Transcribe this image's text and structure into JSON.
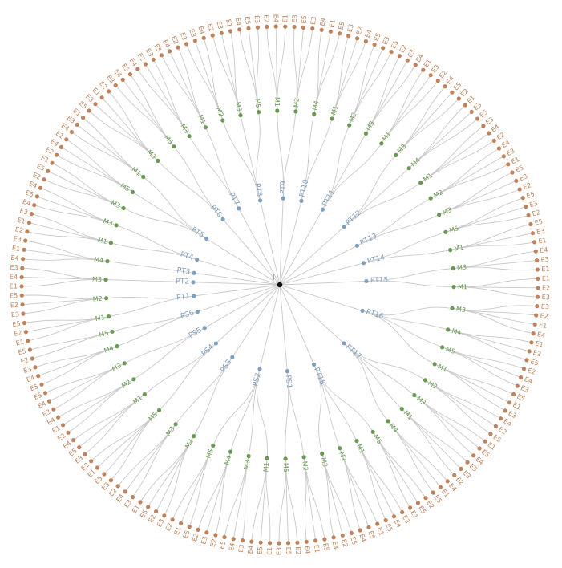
{
  "colors": {
    "root": "#111111",
    "level1": "#7f9fbf",
    "level2": "#6a9a52",
    "level3": "#c0825a",
    "link": "#c9c9c9"
  },
  "root": {
    "label": "l"
  },
  "tree": [
    {
      "label": "PS1",
      "children": [
        {
          "label": "M2",
          "leaves": [
            "E5",
            "E1",
            "E4"
          ]
        },
        {
          "label": "M5",
          "leaves": [
            "E2",
            "E5",
            "E3"
          ]
        }
      ]
    },
    {
      "label": "PS2",
      "children": [
        {
          "label": "M1",
          "leaves": [
            "E1",
            "E5",
            "E4"
          ]
        },
        {
          "label": "M3",
          "leaves": [
            "E3",
            "E4",
            "E5"
          ]
        },
        {
          "label": "M4",
          "leaves": [
            "E2",
            "E3",
            "E2"
          ]
        },
        {
          "label": "M5",
          "leaves": [
            "E5",
            "E1",
            "E2"
          ]
        }
      ]
    },
    {
      "label": "PS3",
      "children": [
        {
          "label": "M2",
          "leaves": [
            "E3",
            "E2",
            "E5",
            "E1"
          ]
        },
        {
          "label": "M3",
          "leaves": [
            "E3",
            "E4",
            "E2"
          ]
        }
      ]
    },
    {
      "label": "PS4",
      "children": [
        {
          "label": "M5",
          "leaves": [
            "E3",
            "E5",
            "E1",
            "E2"
          ]
        },
        {
          "label": "M1",
          "leaves": [
            "E3",
            "E5",
            "E4"
          ]
        }
      ]
    },
    {
      "label": "PS5",
      "children": [
        {
          "label": "M2",
          "leaves": [
            "E2",
            "E1",
            "E4"
          ]
        },
        {
          "label": "M3",
          "leaves": [
            "E3",
            "E4",
            "E5"
          ]
        }
      ]
    },
    {
      "label": "PS6",
      "children": [
        {
          "label": "M4",
          "leaves": [
            "E5",
            "E4",
            "E3"
          ]
        },
        {
          "label": "M5",
          "leaves": [
            "E2",
            "E5"
          ]
        }
      ]
    },
    {
      "label": "PT1",
      "children": [
        {
          "label": "M1",
          "leaves": [
            "E1",
            "E2",
            "E5"
          ]
        },
        {
          "label": "M2",
          "leaves": [
            "E3",
            "E2",
            "E5"
          ]
        }
      ]
    },
    {
      "label": "PT2",
      "children": [
        {
          "label": "M3",
          "leaves": [
            "E1",
            "E4",
            "E3"
          ]
        }
      ]
    },
    {
      "label": "PT3",
      "children": [
        {
          "label": "M4",
          "leaves": [
            "E4",
            "E1",
            "E3"
          ]
        }
      ]
    },
    {
      "label": "PT4",
      "children": [
        {
          "label": "M1",
          "leaves": [
            "E2",
            "E1",
            "E3"
          ]
        },
        {
          "label": "M3",
          "leaves": [
            "E4",
            "E5",
            "E4"
          ]
        }
      ]
    },
    {
      "label": "PT5",
      "children": [
        {
          "label": "M3",
          "leaves": [
            "E2",
            "E5",
            "E1"
          ]
        },
        {
          "label": "M5",
          "leaves": [
            "E2",
            "E4",
            "E1"
          ]
        },
        {
          "label": "M1",
          "leaves": [
            "E4",
            "E3",
            "E1"
          ]
        }
      ]
    },
    {
      "label": "PT6",
      "children": [
        {
          "label": "M3",
          "leaves": [
            "E5",
            "E3",
            "E1",
            "E2"
          ]
        },
        {
          "label": "M5",
          "leaves": [
            "E3",
            "E4",
            "E5"
          ]
        }
      ]
    },
    {
      "label": "PT7",
      "children": [
        {
          "label": "M3",
          "leaves": [
            "E4",
            "E2",
            "E3"
          ]
        },
        {
          "label": "M1",
          "leaves": [
            "E5",
            "E4",
            "E2"
          ]
        }
      ]
    },
    {
      "label": "PT8",
      "children": [
        {
          "label": "M2",
          "leaves": [
            "E1",
            "E3",
            "E4"
          ]
        },
        {
          "label": "M3",
          "leaves": [
            "E2",
            "E3",
            "E1"
          ]
        },
        {
          "label": "M5",
          "leaves": [
            "E4",
            "E5",
            "E3"
          ]
        }
      ]
    },
    {
      "label": "PT9",
      "children": [
        {
          "label": "M1",
          "leaves": [
            "E2",
            "E4",
            "E1"
          ]
        },
        {
          "label": "M2",
          "leaves": [
            "E3",
            "E5",
            "E3"
          ]
        }
      ]
    },
    {
      "label": "PT10",
      "children": [
        {
          "label": "M4",
          "leaves": [
            "E4",
            "E1",
            "E5"
          ]
        },
        {
          "label": "M1",
          "leaves": [
            "E3",
            "E2",
            "E4"
          ]
        }
      ]
    },
    {
      "label": "PT11",
      "children": [
        {
          "label": "M2",
          "leaves": [
            "E5",
            "E3",
            "E5"
          ]
        },
        {
          "label": "M3",
          "leaves": [
            "E2",
            "E3",
            "E4"
          ]
        },
        {
          "label": "M1",
          "leaves": [
            "E1",
            "E3",
            "E2"
          ]
        }
      ]
    },
    {
      "label": "PT12",
      "children": [
        {
          "label": "M3",
          "leaves": [
            "E4",
            "E5",
            "E2"
          ]
        },
        {
          "label": "M4",
          "leaves": [
            "E1",
            "E3",
            "E5"
          ]
        },
        {
          "label": "M1",
          "leaves": [
            "E3",
            "E4",
            "E2"
          ]
        }
      ]
    },
    {
      "label": "PT13",
      "children": [
        {
          "label": "M2",
          "leaves": [
            "E4",
            "E3",
            "E1"
          ]
        },
        {
          "label": "M3",
          "leaves": [
            "E5",
            "E3",
            "E2"
          ]
        }
      ]
    },
    {
      "label": "PT14",
      "children": [
        {
          "label": "M5",
          "leaves": [
            "E5",
            "E3",
            "E2"
          ]
        },
        {
          "label": "M1",
          "leaves": [
            "E5",
            "E3",
            "E1"
          ]
        }
      ]
    },
    {
      "label": "PT15",
      "children": [
        {
          "label": "M3",
          "leaves": [
            "E4",
            "E3",
            "E1"
          ]
        },
        {
          "label": "M1",
          "leaves": [
            "E1",
            "E2",
            "E3"
          ]
        }
      ]
    },
    {
      "label": "PT16",
      "children": [
        {
          "label": "M3",
          "leaves": [
            "E3",
            "E2",
            "E1",
            "E4"
          ]
        },
        {
          "label": "M4",
          "leaves": [
            "E1",
            "E2",
            "E5"
          ]
        },
        {
          "label": "M5",
          "leaves": [
            "E2",
            "E4",
            "E3"
          ]
        },
        {
          "label": "M1",
          "leaves": [
            "E5",
            "E1",
            "E3"
          ]
        }
      ]
    },
    {
      "label": "PT17",
      "children": [
        {
          "label": "M2",
          "leaves": [
            "E4",
            "E2",
            "E5"
          ]
        },
        {
          "label": "M3",
          "leaves": [
            "E1",
            "E5",
            "E4"
          ]
        },
        {
          "label": "M1",
          "leaves": [
            "E5",
            "E3",
            "E2"
          ]
        },
        {
          "label": "M4",
          "leaves": [
            "E4",
            "E1",
            "E5"
          ]
        }
      ]
    },
    {
      "label": "PT18",
      "children": [
        {
          "label": "M5",
          "leaves": [
            "E2",
            "E5",
            "E1"
          ]
        },
        {
          "label": "M1",
          "leaves": [
            "E3",
            "E4",
            "E5"
          ]
        },
        {
          "label": "M2",
          "leaves": [
            "E1",
            "E5",
            "E4"
          ]
        },
        {
          "label": "M3",
          "leaves": [
            "E5",
            "E2",
            "E4"
          ]
        }
      ]
    }
  ]
}
